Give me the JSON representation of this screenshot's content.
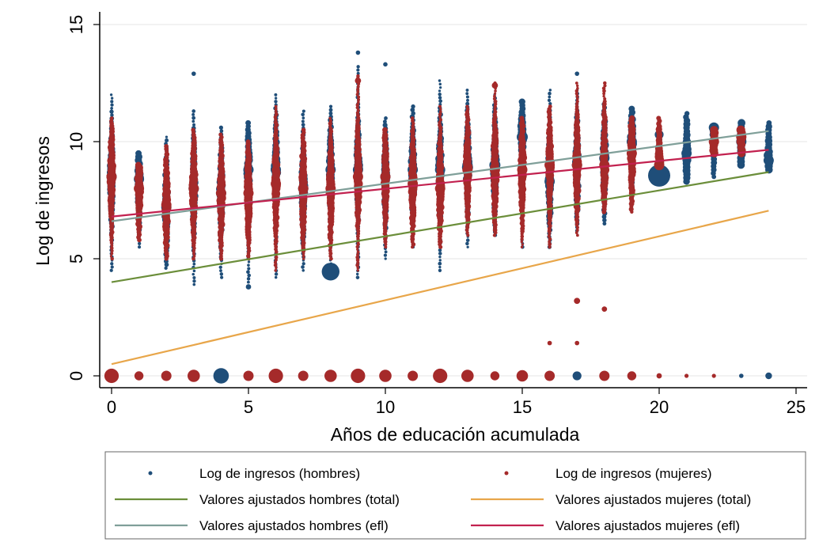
{
  "chart_data": {
    "type": "scatter",
    "xlabel": "Años de educación acumulada",
    "ylabel": "Log de ingresos",
    "xlim": [
      0,
      25
    ],
    "ylim": [
      0,
      15
    ],
    "xticks": [
      0,
      5,
      10,
      15,
      20,
      25
    ],
    "yticks": [
      0,
      5,
      10,
      15
    ],
    "grid": true,
    "legend_position": "bottom",
    "colors": {
      "hombres": "#1f4e79",
      "mujeres": "#a52a2a",
      "fit_hombres_total": "#6b8e3a",
      "fit_mujeres_total": "#e8a64a",
      "fit_hombres_efl": "#7f9f99",
      "fit_mujeres_efl": "#c2214f"
    },
    "legend": [
      {
        "label": "Log de ingresos (hombres)",
        "kind": "dot",
        "color": "#1f4e79"
      },
      {
        "label": "Log de ingresos (mujeres)",
        "kind": "dot",
        "color": "#a52a2a"
      },
      {
        "label": "Valores ajustados hombres (total)",
        "kind": "line",
        "color": "#6b8e3a"
      },
      {
        "label": "Valores ajustados mujeres (total)",
        "kind": "line",
        "color": "#e8a64a"
      },
      {
        "label": "Valores ajustados hombres (efl)",
        "kind": "line",
        "color": "#7f9f99"
      },
      {
        "label": "Valores ajustados mujeres (efl)",
        "kind": "line",
        "color": "#c2214f"
      }
    ],
    "fit_lines": [
      {
        "name": "Valores ajustados hombres (total)",
        "x": [
          0,
          24
        ],
        "y": [
          4.0,
          8.7
        ]
      },
      {
        "name": "Valores ajustados mujeres (total)",
        "x": [
          0,
          24
        ],
        "y": [
          0.5,
          7.05
        ]
      },
      {
        "name": "Valores ajustados hombres (efl)",
        "x": [
          0,
          24
        ],
        "y": [
          6.6,
          10.45
        ]
      },
      {
        "name": "Valores ajustados mujeres (efl)",
        "x": [
          0,
          24
        ],
        "y": [
          6.8,
          9.65
        ]
      }
    ],
    "hombres_ranges": [
      {
        "x": 0,
        "lo": 4.5,
        "hi": 12.0,
        "mode": 8.5
      },
      {
        "x": 1,
        "lo": 5.5,
        "hi": 9.5,
        "mode": 8.4
      },
      {
        "x": 2,
        "lo": 4.6,
        "hi": 10.2,
        "mode": 7.2
      },
      {
        "x": 3,
        "lo": 3.9,
        "hi": 11.3,
        "mode": 8.0
      },
      {
        "x": 4,
        "lo": 4.2,
        "hi": 10.6,
        "mode": 7.8
      },
      {
        "x": 5,
        "lo": 4.0,
        "hi": 10.8,
        "mode": 8.8
      },
      {
        "x": 6,
        "lo": 4.2,
        "hi": 12.0,
        "mode": 8.8
      },
      {
        "x": 7,
        "lo": 4.5,
        "hi": 11.3,
        "mode": 8.0
      },
      {
        "x": 8,
        "lo": 4.5,
        "hi": 11.5,
        "mode": 8.8
      },
      {
        "x": 9,
        "lo": 4.2,
        "hi": 13.2,
        "mode": 8.8
      },
      {
        "x": 10,
        "lo": 5.0,
        "hi": 11.0,
        "mode": 8.5
      },
      {
        "x": 11,
        "lo": 5.5,
        "hi": 11.5,
        "mode": 8.8
      },
      {
        "x": 12,
        "lo": 4.5,
        "hi": 12.6,
        "mode": 8.8
      },
      {
        "x": 13,
        "lo": 5.5,
        "hi": 12.2,
        "mode": 9.0
      },
      {
        "x": 14,
        "lo": 6.0,
        "hi": 12.0,
        "mode": 9.0
      },
      {
        "x": 15,
        "lo": 5.5,
        "hi": 11.7,
        "mode": 10.2
      },
      {
        "x": 16,
        "lo": 5.5,
        "hi": 12.2,
        "mode": 8.3
      },
      {
        "x": 17,
        "lo": 6.2,
        "hi": 12.2,
        "mode": 9.0
      },
      {
        "x": 18,
        "lo": 6.5,
        "hi": 11.6,
        "mode": 9.3
      },
      {
        "x": 19,
        "lo": 7.5,
        "hi": 11.4,
        "mode": 10.0
      },
      {
        "x": 20,
        "lo": 8.5,
        "hi": 10.4,
        "mode": 8.5
      },
      {
        "x": 21,
        "lo": 8.3,
        "hi": 11.2,
        "mode": 9.5
      },
      {
        "x": 22,
        "lo": 8.5,
        "hi": 10.6,
        "mode": 10.6
      },
      {
        "x": 23,
        "lo": 9.0,
        "hi": 10.8,
        "mode": 10.0
      },
      {
        "x": 24,
        "lo": 8.8,
        "hi": 10.8,
        "mode": 9.2
      }
    ],
    "mujeres_ranges": [
      {
        "x": 0,
        "lo": 5.0,
        "hi": 11.0,
        "mode": 8.5
      },
      {
        "x": 1,
        "lo": 5.8,
        "hi": 9.0,
        "mode": 8.0
      },
      {
        "x": 2,
        "lo": 5.0,
        "hi": 9.8,
        "mode": 7.3
      },
      {
        "x": 3,
        "lo": 5.0,
        "hi": 10.5,
        "mode": 8.0
      },
      {
        "x": 4,
        "lo": 5.0,
        "hi": 10.3,
        "mode": 7.8
      },
      {
        "x": 5,
        "lo": 5.0,
        "hi": 10.0,
        "mode": 7.8
      },
      {
        "x": 6,
        "lo": 4.5,
        "hi": 11.5,
        "mode": 8.2
      },
      {
        "x": 7,
        "lo": 5.0,
        "hi": 10.5,
        "mode": 8.0
      },
      {
        "x": 8,
        "lo": 5.0,
        "hi": 11.0,
        "mode": 8.0
      },
      {
        "x": 9,
        "lo": 4.5,
        "hi": 12.8,
        "mode": 8.5
      },
      {
        "x": 10,
        "lo": 5.5,
        "hi": 10.5,
        "mode": 8.5
      },
      {
        "x": 11,
        "lo": 5.5,
        "hi": 11.0,
        "mode": 8.2
      },
      {
        "x": 12,
        "lo": 5.5,
        "hi": 11.5,
        "mode": 8.0
      },
      {
        "x": 13,
        "lo": 6.0,
        "hi": 11.5,
        "mode": 8.8
      },
      {
        "x": 14,
        "lo": 6.0,
        "hi": 12.5,
        "mode": 8.8
      },
      {
        "x": 15,
        "lo": 5.5,
        "hi": 11.0,
        "mode": 8.8
      },
      {
        "x": 16,
        "lo": 5.5,
        "hi": 11.5,
        "mode": 9.0
      },
      {
        "x": 17,
        "lo": 6.0,
        "hi": 12.5,
        "mode": 9.0
      },
      {
        "x": 18,
        "lo": 7.0,
        "hi": 12.5,
        "mode": 9.0
      },
      {
        "x": 19,
        "lo": 7.0,
        "hi": 11.0,
        "mode": 9.5
      },
      {
        "x": 20,
        "lo": 9.0,
        "hi": 11.0,
        "mode": 9.0
      },
      {
        "x": 22,
        "lo": 9.5,
        "hi": 10.5,
        "mode": 10.0
      },
      {
        "x": 23,
        "lo": 9.5,
        "hi": 10.5,
        "mode": 10.2
      }
    ],
    "hombres_points": [
      {
        "x": 8,
        "y": 4.45,
        "size": 4
      },
      {
        "x": 20,
        "y": 8.55,
        "size": 5
      },
      {
        "x": 20,
        "y": 10.3,
        "size": 2
      },
      {
        "x": 22,
        "y": 10.6,
        "size": 2
      },
      {
        "x": 21,
        "y": 10.3,
        "size": 1.5
      },
      {
        "x": 21,
        "y": 8.3,
        "size": 1.5
      },
      {
        "x": 9,
        "y": 13.8,
        "size": 1
      },
      {
        "x": 10,
        "y": 13.3,
        "size": 1
      },
      {
        "x": 3,
        "y": 12.9,
        "size": 1
      },
      {
        "x": 17,
        "y": 12.9,
        "size": 1
      },
      {
        "x": 5,
        "y": 3.8,
        "size": 1.2
      },
      {
        "x": 15,
        "y": 10.2,
        "size": 2.5
      },
      {
        "x": 13,
        "y": 8.9,
        "size": 2.5
      },
      {
        "x": 14,
        "y": 9.0,
        "size": 2.5
      },
      {
        "x": 4,
        "y": 0,
        "size": 3.5
      },
      {
        "x": 17,
        "y": 0,
        "size": 2
      },
      {
        "x": 23,
        "y": 0,
        "size": 1
      },
      {
        "x": 24,
        "y": 0,
        "size": 1.5
      }
    ],
    "mujeres_points": [
      {
        "x": 17,
        "y": 3.2,
        "size": 1.5
      },
      {
        "x": 18,
        "y": 2.85,
        "size": 1.3
      },
      {
        "x": 16,
        "y": 1.4,
        "size": 1.1
      },
      {
        "x": 17,
        "y": 1.4,
        "size": 1.1
      },
      {
        "x": 14,
        "y": 12.4,
        "size": 1.5
      },
      {
        "x": 9,
        "y": 12.6,
        "size": 1.5
      },
      {
        "x": 0,
        "y": 0,
        "size": 3.5
      },
      {
        "x": 1,
        "y": 0,
        "size": 2.2
      },
      {
        "x": 2,
        "y": 0,
        "size": 2.5
      },
      {
        "x": 3,
        "y": 0,
        "size": 3.0
      },
      {
        "x": 5,
        "y": 0,
        "size": 2.5
      },
      {
        "x": 6,
        "y": 0,
        "size": 3.5
      },
      {
        "x": 7,
        "y": 0,
        "size": 2.5
      },
      {
        "x": 8,
        "y": 0,
        "size": 3.0
      },
      {
        "x": 9,
        "y": 0,
        "size": 3.5
      },
      {
        "x": 10,
        "y": 0,
        "size": 3.0
      },
      {
        "x": 11,
        "y": 0,
        "size": 2.5
      },
      {
        "x": 12,
        "y": 0,
        "size": 3.5
      },
      {
        "x": 13,
        "y": 0,
        "size": 3.0
      },
      {
        "x": 14,
        "y": 0,
        "size": 2.2
      },
      {
        "x": 15,
        "y": 0,
        "size": 2.8
      },
      {
        "x": 16,
        "y": 0,
        "size": 2.5
      },
      {
        "x": 18,
        "y": 0,
        "size": 2.5
      },
      {
        "x": 19,
        "y": 0,
        "size": 2.2
      },
      {
        "x": 20,
        "y": 0,
        "size": 1.3
      },
      {
        "x": 21,
        "y": 0,
        "size": 1.0
      },
      {
        "x": 22,
        "y": 0,
        "size": 1.0
      }
    ]
  }
}
